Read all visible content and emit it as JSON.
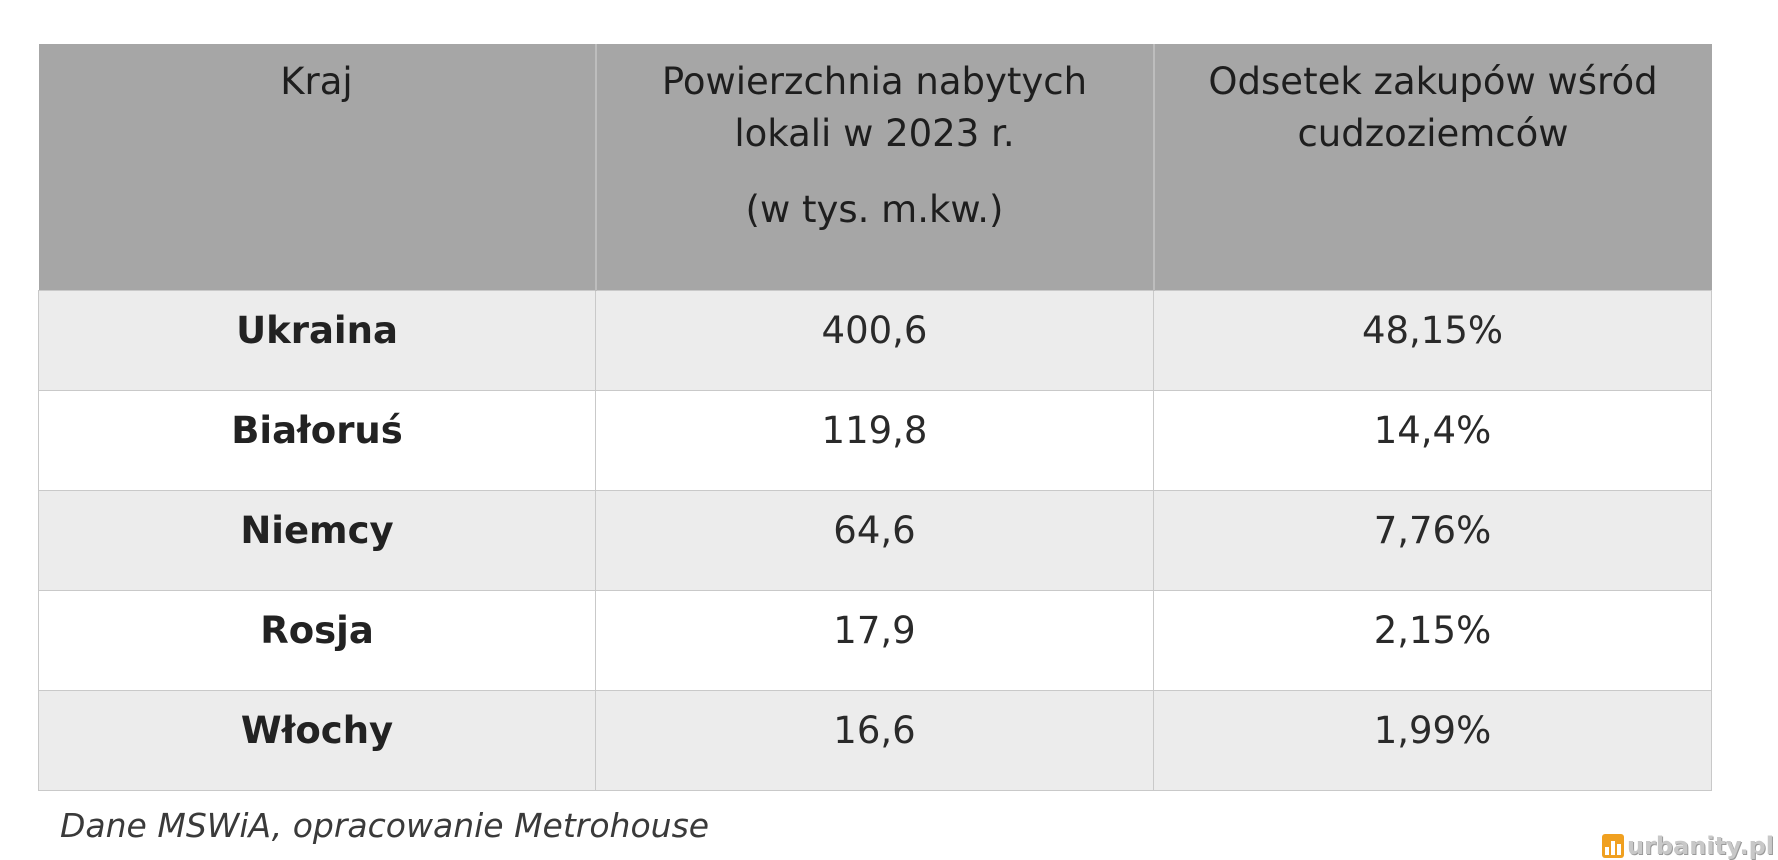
{
  "table": {
    "headers": {
      "country": "Kraj",
      "area": [
        "Powierzchnia nabytych",
        "lokali w 2023 r.",
        "(w tys. m.kw.)"
      ],
      "share": [
        "Odsetek zakupów wśród",
        "cudzoziemców"
      ]
    },
    "rows": [
      {
        "country": "Ukraina",
        "area": "400,6",
        "share": "48,15%"
      },
      {
        "country": "Białoruś",
        "area": "119,8",
        "share": "14,4%"
      },
      {
        "country": "Niemcy",
        "area": "64,6",
        "share": "7,76%"
      },
      {
        "country": "Rosja",
        "area": "17,9",
        "share": "2,15%"
      },
      {
        "country": "Włochy",
        "area": "16,6",
        "share": "1,99%"
      }
    ]
  },
  "source_note": "Dane MSWiA, opracowanie Metrohouse",
  "watermark": {
    "text": "urbanity.pl",
    "logo_color": "#f0a020"
  },
  "colors": {
    "header_bg": "#a6a6a6",
    "row_odd_bg": "#ececec",
    "row_even_bg": "#ffffff"
  }
}
